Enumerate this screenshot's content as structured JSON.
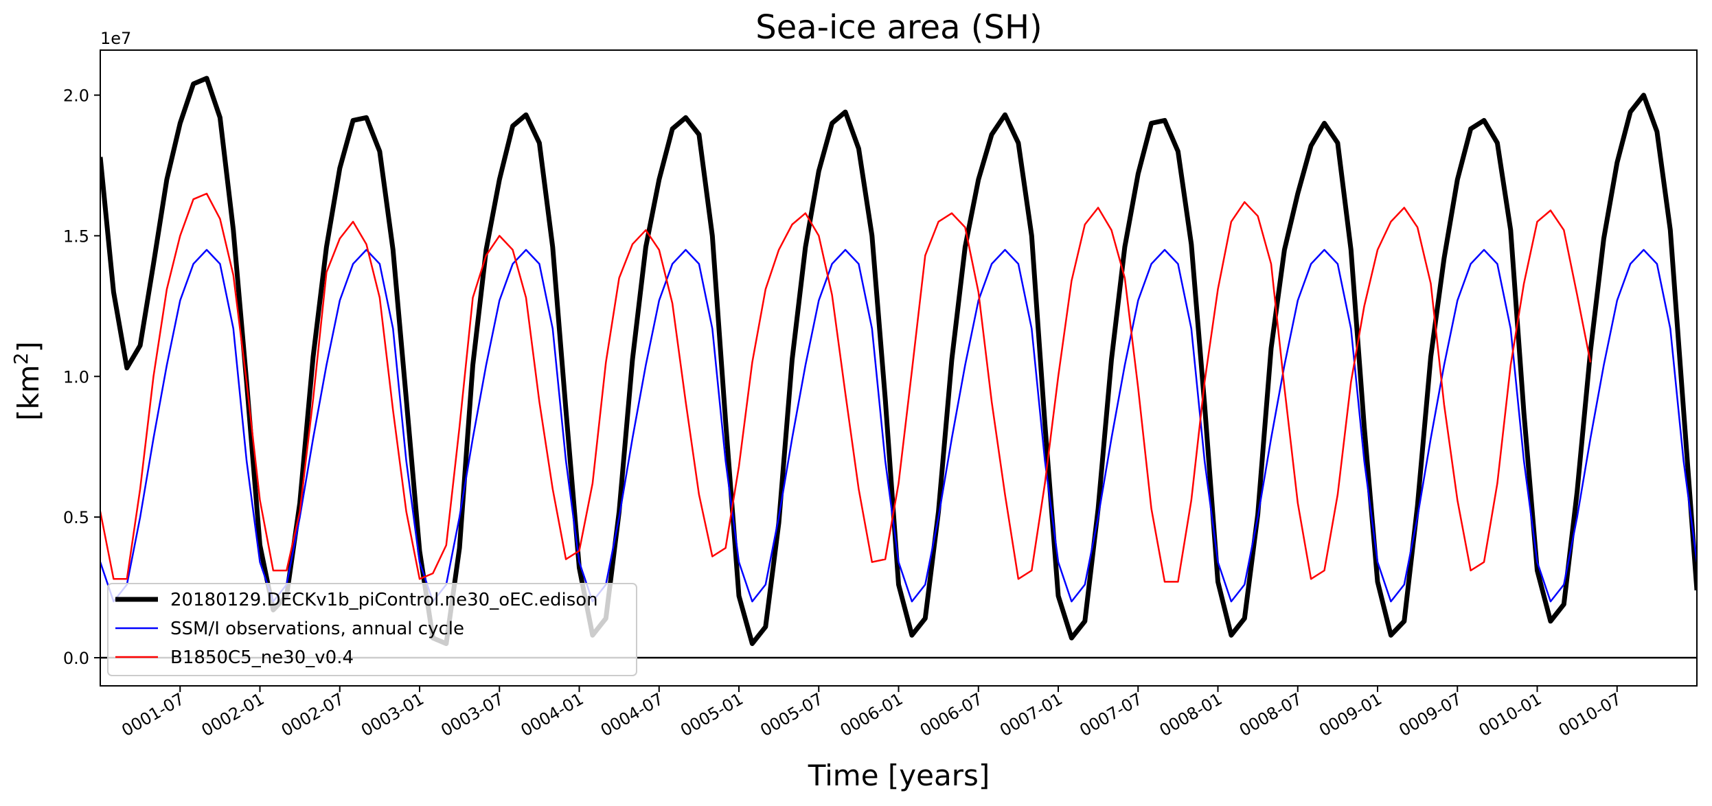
{
  "chart_data": {
    "type": "line",
    "title": "Sea-ice area (SH)",
    "xlabel": "Time [years]",
    "ylabel": "[km",
    "ylabel_sup": "2",
    "ylabel_suffix": "]",
    "y_offset_label": "1e7",
    "x_unit": "month index from 0001-01",
    "xlim": [
      0,
      120
    ],
    "ylim": [
      -0.1,
      2.16
    ],
    "yticks": [
      0.0,
      0.5,
      1.0,
      1.5,
      2.0
    ],
    "ytick_labels": [
      "0.0",
      "0.5",
      "1.0",
      "1.5",
      "2.0"
    ],
    "xticks": [
      6,
      12,
      18,
      24,
      30,
      36,
      42,
      48,
      54,
      60,
      66,
      72,
      78,
      84,
      90,
      96,
      102,
      108,
      114
    ],
    "xtick_labels": [
      "0001-07",
      "0002-01",
      "0002-07",
      "0003-01",
      "0003-07",
      "0004-01",
      "0004-07",
      "0005-01",
      "0005-07",
      "0006-01",
      "0006-07",
      "0007-01",
      "0007-07",
      "0008-01",
      "0008-07",
      "0009-01",
      "0009-07",
      "0010-01",
      "0010-07"
    ],
    "hline": 0.0,
    "grid": false,
    "legend_position": "lower-left",
    "series": [
      {
        "name": "20180129.DECKv1b_piControl.ne30_oEC.edison",
        "color": "#000000",
        "linewidth": 7,
        "x_start": 0,
        "values": [
          1.78,
          1.3,
          1.03,
          1.11,
          1.4,
          1.7,
          1.9,
          2.04,
          2.06,
          1.92,
          1.52,
          0.98,
          0.4,
          0.17,
          0.22,
          0.55,
          1.07,
          1.46,
          1.74,
          1.91,
          1.92,
          1.8,
          1.45,
          0.92,
          0.38,
          0.07,
          0.05,
          0.39,
          1.04,
          1.45,
          1.7,
          1.89,
          1.93,
          1.83,
          1.46,
          0.88,
          0.32,
          0.08,
          0.14,
          0.52,
          1.06,
          1.46,
          1.7,
          1.88,
          1.92,
          1.86,
          1.5,
          0.84,
          0.22,
          0.05,
          0.11,
          0.48,
          1.06,
          1.46,
          1.73,
          1.9,
          1.94,
          1.81,
          1.5,
          0.92,
          0.26,
          0.08,
          0.14,
          0.52,
          1.06,
          1.46,
          1.7,
          1.86,
          1.93,
          1.83,
          1.5,
          0.83,
          0.22,
          0.07,
          0.13,
          0.53,
          1.06,
          1.46,
          1.72,
          1.9,
          1.91,
          1.8,
          1.47,
          0.9,
          0.27,
          0.08,
          0.14,
          0.51,
          1.1,
          1.45,
          1.65,
          1.82,
          1.9,
          1.83,
          1.45,
          0.82,
          0.27,
          0.08,
          0.13,
          0.54,
          1.07,
          1.42,
          1.7,
          1.88,
          1.91,
          1.83,
          1.52,
          0.87,
          0.31,
          0.13,
          0.19,
          0.59,
          1.09,
          1.49,
          1.76,
          1.94,
          2.0,
          1.87,
          1.52,
          0.88,
          0.24
        ]
      },
      {
        "name": "SSM/I observations, annual cycle",
        "color": "#0000ff",
        "linewidth": 2.5,
        "x_start": 0,
        "values": [
          0.34,
          0.2,
          0.26,
          0.5,
          0.78,
          1.04,
          1.27,
          1.4,
          1.45,
          1.4,
          1.17,
          0.7,
          0.34,
          0.2,
          0.26,
          0.5,
          0.78,
          1.04,
          1.27,
          1.4,
          1.45,
          1.4,
          1.17,
          0.7,
          0.34,
          0.2,
          0.26,
          0.5,
          0.78,
          1.04,
          1.27,
          1.4,
          1.45,
          1.4,
          1.17,
          0.7,
          0.34,
          0.2,
          0.26,
          0.5,
          0.78,
          1.04,
          1.27,
          1.4,
          1.45,
          1.4,
          1.17,
          0.7,
          0.34,
          0.2,
          0.26,
          0.5,
          0.78,
          1.04,
          1.27,
          1.4,
          1.45,
          1.4,
          1.17,
          0.7,
          0.34,
          0.2,
          0.26,
          0.5,
          0.78,
          1.04,
          1.27,
          1.4,
          1.45,
          1.4,
          1.17,
          0.7,
          0.34,
          0.2,
          0.26,
          0.5,
          0.78,
          1.04,
          1.27,
          1.4,
          1.45,
          1.4,
          1.17,
          0.7,
          0.34,
          0.2,
          0.26,
          0.5,
          0.78,
          1.04,
          1.27,
          1.4,
          1.45,
          1.4,
          1.17,
          0.7,
          0.34,
          0.2,
          0.26,
          0.5,
          0.78,
          1.04,
          1.27,
          1.4,
          1.45,
          1.4,
          1.17,
          0.7,
          0.34,
          0.2,
          0.26,
          0.5,
          0.78,
          1.04,
          1.27,
          1.4,
          1.45,
          1.4,
          1.17,
          0.7,
          0.34
        ]
      },
      {
        "name": "B1850C5_ne30_v0.4",
        "color": "#ff0000",
        "linewidth": 2.5,
        "x_start": 0,
        "values": [
          0.52,
          0.28,
          0.28,
          0.6,
          1.0,
          1.31,
          1.5,
          1.63,
          1.65,
          1.56,
          1.36,
          0.98,
          0.56,
          0.31,
          0.31,
          0.52,
          0.92,
          1.37,
          1.49,
          1.55,
          1.47,
          1.28,
          0.88,
          0.52,
          0.28,
          0.3,
          0.4,
          0.82,
          1.28,
          1.43,
          1.5,
          1.45,
          1.28,
          0.91,
          0.6,
          0.35,
          0.38,
          0.62,
          1.05,
          1.35,
          1.47,
          1.52,
          1.45,
          1.26,
          0.91,
          0.58,
          0.36,
          0.39,
          0.68,
          1.05,
          1.31,
          1.45,
          1.54,
          1.58,
          1.5,
          1.29,
          0.94,
          0.6,
          0.34,
          0.35,
          0.62,
          1.02,
          1.43,
          1.55,
          1.58,
          1.53,
          1.3,
          0.91,
          0.58,
          0.28,
          0.31,
          0.62,
          1.0,
          1.34,
          1.54,
          1.6,
          1.52,
          1.35,
          0.96,
          0.53,
          0.27,
          0.27,
          0.56,
          0.98,
          1.31,
          1.55,
          1.62,
          1.57,
          1.4,
          0.96,
          0.55,
          0.28,
          0.31,
          0.58,
          0.98,
          1.25,
          1.45,
          1.55,
          1.6,
          1.53,
          1.33,
          0.9,
          0.56,
          0.31,
          0.34,
          0.62,
          1.04,
          1.33,
          1.55,
          1.59,
          1.52,
          1.29,
          1.05
        ]
      }
    ]
  }
}
